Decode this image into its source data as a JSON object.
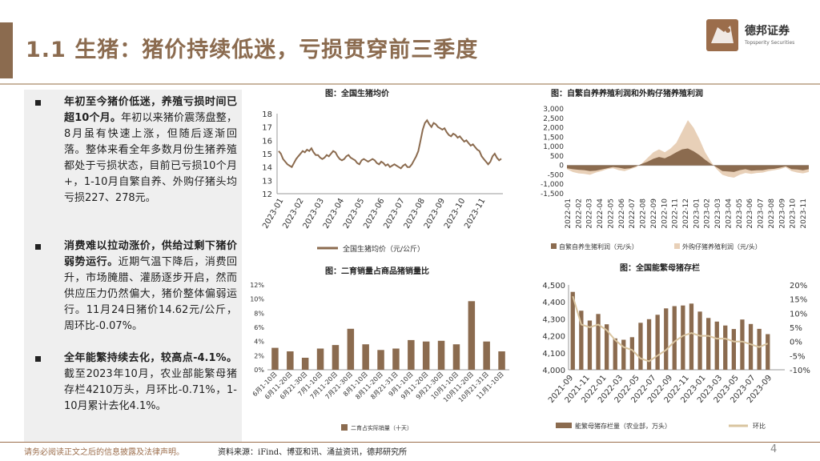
{
  "header": {
    "title": "1.1 生猪：猪价持续低迷，亏损贯穿前三季度",
    "logo_name": "德邦证券",
    "logo_sub": "Topsperity Securities"
  },
  "bullets": [
    {
      "bold": "年初至今猪价低迷，养殖亏损时间已超10个月。",
      "text": "年初以来猪价震荡盘整，8月虽有快速上涨，但随后逐渐回落。整体来看全年多数月份生猪养殖都处于亏损状态，目前已亏损10个月+，1-10月自繁自养、外购仔猪头均亏损227、278元。"
    },
    {
      "bold": "消费难以拉动涨价，供给过剩下猪价弱势运行。",
      "text": "近期气温下降后，消费回升，市场腌腊、灌肠逐步开启，然而供应压力仍然偏大，猪价整体偏弱运行。11月24日猪价14.62元/公斤，周环比-0.07%。"
    },
    {
      "bold": "全年能繁持续去化，较高点-4.1%。",
      "text": "截至2023年10月，农业部能繁母猪存栏4210万头，月环比-0.71%，1-10月累计去化4.1%。"
    }
  ],
  "colors": {
    "brand": "#8b6b4f",
    "bar": "#8b6b4f",
    "line": "#8b6b4f",
    "light": "#e8d0b8",
    "footer": "#9b6d4b"
  },
  "footer": {
    "disclaimer": "请务必阅读正文之后的信息披露及法律声明。",
    "source": "资料来源：iFind、博亚和讯、涌益资讯，德邦研究所",
    "page": "4"
  },
  "chart_data": [
    {
      "type": "line",
      "title": "图：全国生猪均价",
      "legend": [
        "全国生猪均价（元/公斤）"
      ],
      "ylim": [
        12,
        18
      ],
      "yticks": [
        "18",
        "17",
        "16",
        "15",
        "14",
        "13",
        "12"
      ],
      "xticks": [
        "2023-01",
        "2023-02",
        "2023-03",
        "2023-04",
        "2023-05",
        "2023-06",
        "2023-07",
        "2023-08",
        "2023-09",
        "2023-10",
        "2023-11"
      ],
      "values": [
        15.2,
        15.0,
        14.6,
        14.4,
        14.2,
        14.1,
        14.0,
        14.3,
        14.6,
        14.8,
        15.0,
        15.2,
        15.1,
        15.3,
        15.2,
        15.4,
        15.1,
        14.9,
        14.9,
        14.7,
        14.6,
        14.7,
        14.9,
        14.8,
        15.0,
        15.2,
        15.1,
        14.8,
        14.6,
        14.5,
        14.6,
        14.8,
        14.9,
        14.7,
        14.6,
        14.5,
        14.3,
        14.2,
        14.5,
        14.6,
        14.5,
        14.4,
        14.5,
        14.6,
        14.5,
        14.3,
        14.2,
        14.4,
        14.3,
        14.1,
        14.2,
        14.0,
        14.1,
        14.2,
        14.1,
        14.0,
        13.9,
        14.1,
        14.2,
        14.0,
        14.0,
        14.2,
        14.5,
        14.8,
        15.2,
        16.0,
        16.8,
        17.3,
        17.5,
        17.2,
        17.0,
        17.3,
        17.2,
        17.0,
        16.9,
        16.8,
        16.9,
        16.6,
        16.4,
        16.3,
        16.5,
        16.4,
        16.2,
        16.3,
        16.1,
        15.9,
        16.0,
        15.8,
        15.6,
        15.7,
        15.5,
        15.3,
        15.2,
        14.8,
        14.6,
        14.4,
        14.2,
        14.4,
        14.8,
        15.0,
        14.7,
        14.5,
        14.62
      ]
    },
    {
      "type": "area",
      "title": "图：自繁自养养殖利润和外购仔猪养殖利润",
      "series": [
        {
          "name": "自繁自养生猪利润（元/头）",
          "values": [
            -150,
            -200,
            -230,
            -250,
            -300,
            -280,
            -220,
            -150,
            -80,
            -120,
            -180,
            -150,
            -50,
            80,
            200,
            350,
            450,
            380,
            520,
            700,
            850,
            900,
            750,
            550,
            300,
            80,
            -100,
            -300,
            -320,
            -350,
            -250,
            -200,
            -280,
            -260,
            -250,
            -200,
            -180,
            -120,
            -50,
            -200,
            -220,
            -260,
            -200
          ]
        },
        {
          "name": "外购仔猪养殖利润（元/头）",
          "values": [
            -200,
            -350,
            -420,
            -450,
            -500,
            -380,
            -300,
            -200,
            -150,
            -250,
            -300,
            -200,
            -100,
            100,
            400,
            700,
            850,
            700,
            900,
            1200,
            1800,
            2400,
            2000,
            1400,
            700,
            200,
            -200,
            -500,
            -600,
            -650,
            -500,
            -400,
            -450,
            -400,
            -380,
            -300,
            -250,
            -200,
            -100,
            -300,
            -380,
            -420,
            -350
          ]
        }
      ],
      "ylim": [
        -1500,
        3000
      ],
      "yticks": [
        "3,000",
        "2,500",
        "2,000",
        "1,500",
        "1,000",
        "500",
        "0",
        "-500",
        "-1,000",
        "-1,500"
      ],
      "xticks": [
        "2022-01",
        "2022-02",
        "2022-03",
        "2022-04",
        "2022-05",
        "2022-06",
        "2022-07",
        "2022-08",
        "2022-09",
        "2022-10",
        "2022-11",
        "2022-12",
        "2023-01",
        "2023-02",
        "2023-03",
        "2023-04",
        "2023-05",
        "2023-06",
        "2023-07",
        "2023-08",
        "2023-09",
        "2023-10",
        "2023-11"
      ]
    },
    {
      "type": "bar",
      "title": "图：二育销量占商品猪销量比",
      "legend": [
        "二育占实际销量（十天）"
      ],
      "ylim": [
        0,
        12
      ],
      "yticks": [
        "12%",
        "10%",
        "8%",
        "6%",
        "4%",
        "2%",
        "0%"
      ],
      "categories": [
        "6月1-10日",
        "6月11-20日",
        "6月21-30日",
        "7月1-10日",
        "7月11-20日",
        "7月21-30日",
        "8月1-10日",
        "8月11-20日",
        "8月21-31日",
        "9月1-10日",
        "9月11-20日",
        "9月21-30日",
        "10月1-10日",
        "10月11-20日",
        "10月21-31日",
        "11月1-10日"
      ],
      "values": [
        3.1,
        2.6,
        1.7,
        3.0,
        3.5,
        5.8,
        3.6,
        2.8,
        3.0,
        4.2,
        4.0,
        4.1,
        3.6,
        9.7,
        4.0,
        2.6
      ]
    },
    {
      "type": "bar",
      "title": "图：全国能繁母猪存栏",
      "series": [
        {
          "name": "能繁母猪存栏量（农业部，万头）",
          "values": [
            4459,
            4348,
            4290,
            4329,
            4268,
            4185,
            4177,
            4192,
            4277,
            4298,
            4324,
            4362,
            4375,
            4379,
            4390,
            4343,
            4305,
            4284,
            4261,
            4240,
            4296,
            4270,
            4241,
            4210
          ]
        },
        {
          "name": "环比",
          "values": [
            16.0,
            6.0,
            5.0,
            6.0,
            4.0,
            0.5,
            -2.0,
            -3.0,
            -6.0,
            -7.0,
            -5.0,
            -3.0,
            0.0,
            2.0,
            3.0,
            2.0,
            2.0,
            1.0,
            1.0,
            0.0,
            0.0,
            -1.0,
            -2.0,
            -0.71
          ]
        }
      ],
      "ylim": [
        4000,
        4500
      ],
      "y2lim": [
        -10,
        20
      ],
      "yticks": [
        "4,500",
        "4,400",
        "4,300",
        "4,200",
        "4,100",
        "4,000"
      ],
      "y2ticks": [
        "20%",
        "15%",
        "10%",
        "5%",
        "0%",
        "-5%",
        "-10%"
      ],
      "xticks": [
        "2021-09",
        "2021-11",
        "2022-01",
        "2022-03",
        "2022-05",
        "2022-07",
        "2022-09",
        "2022-11",
        "2023-01",
        "2023-03",
        "2023-05",
        "2023-07",
        "2023-09"
      ]
    }
  ]
}
